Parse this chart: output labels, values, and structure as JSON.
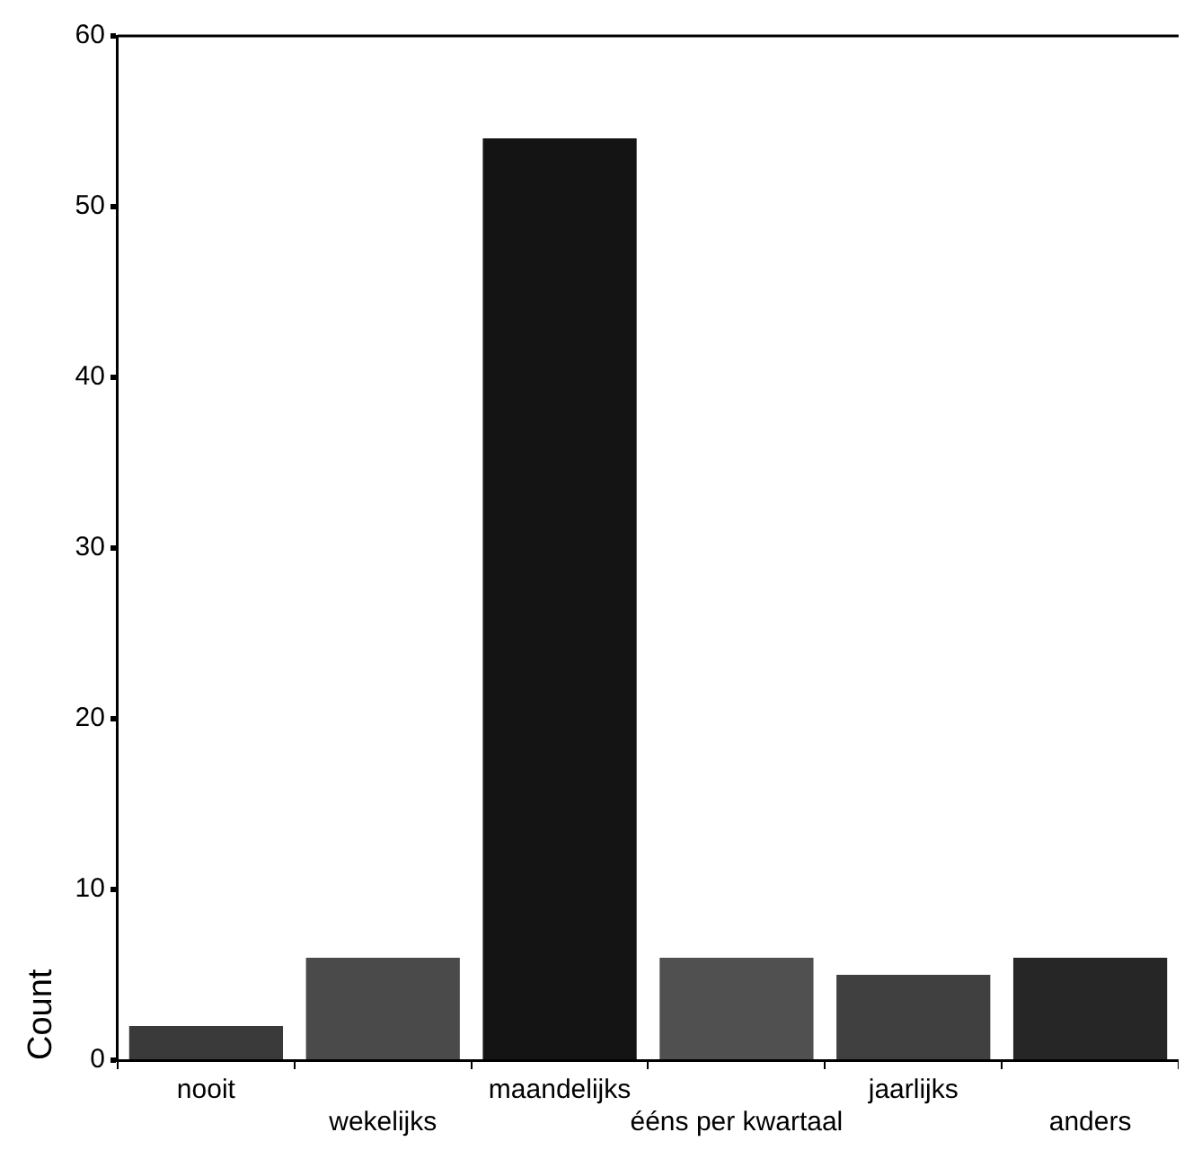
{
  "chart_data": {
    "type": "bar",
    "ylabel": "Count",
    "categories": [
      "nooit",
      "wekelijks",
      "maandelijks",
      "ééns per kwartaal",
      "jaarlijks",
      "anders"
    ],
    "values": [
      2,
      6,
      54,
      6,
      5,
      6
    ],
    "colors": [
      "#3a3a3a",
      "#4a4a4a",
      "#141414",
      "#505050",
      "#404040",
      "#262626"
    ],
    "ylim": [
      0,
      60
    ],
    "yticks": [
      0,
      10,
      20,
      30,
      40,
      50,
      60
    ],
    "grid": false,
    "legend": false
  }
}
